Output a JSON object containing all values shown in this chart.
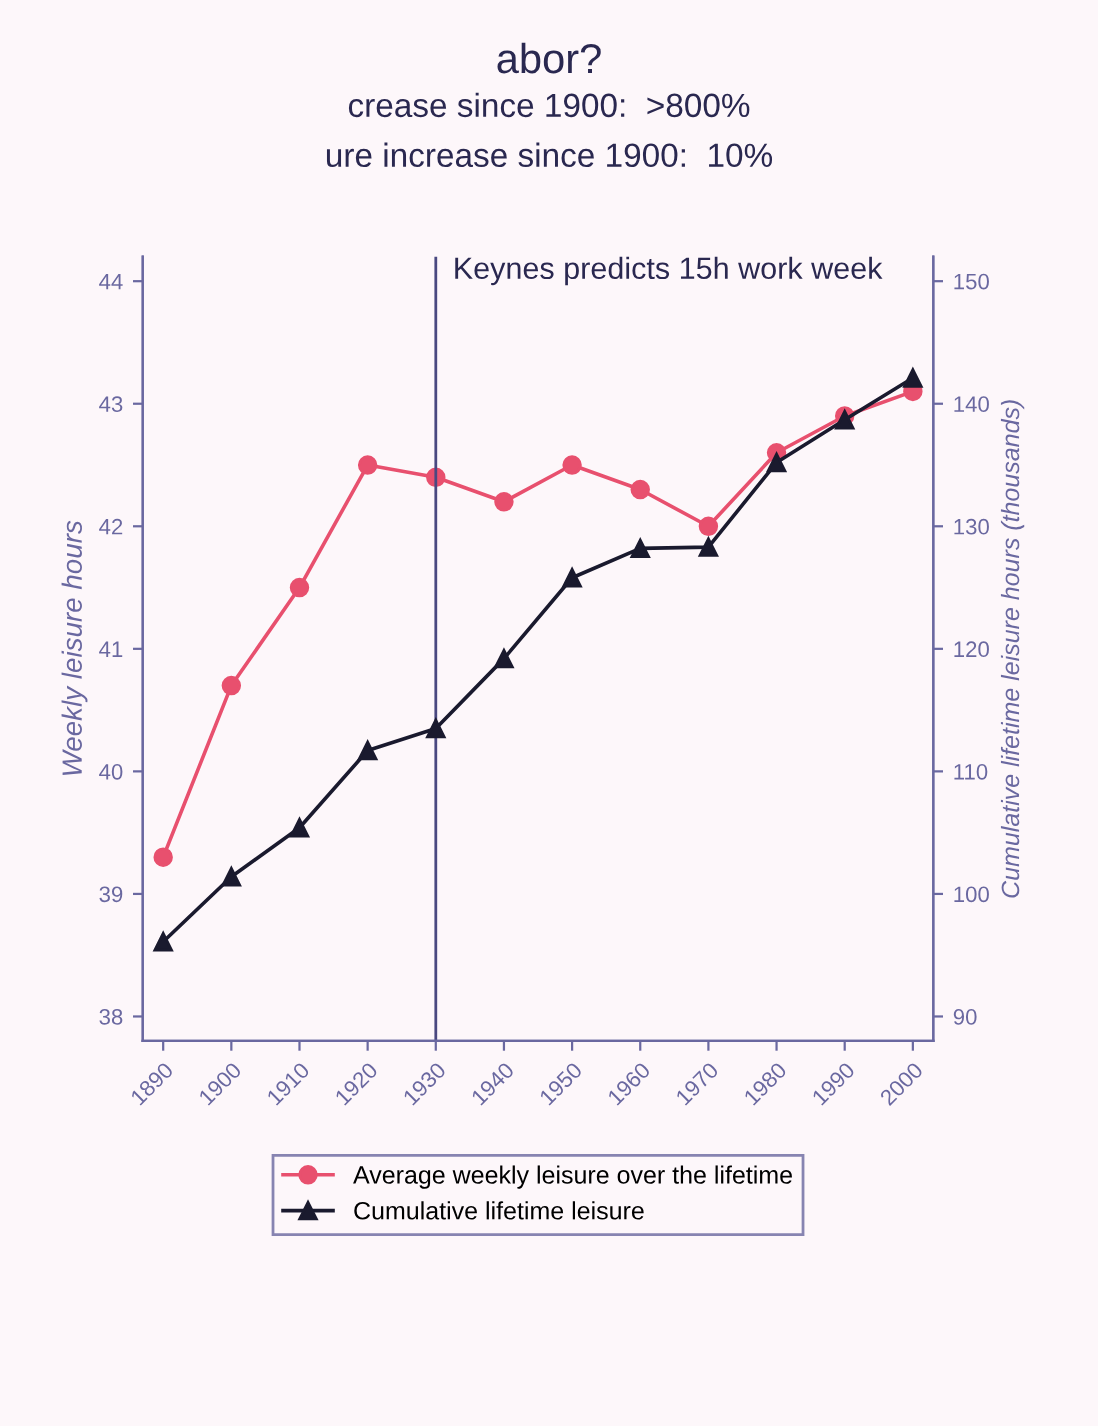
{
  "chart_data": {
    "type": "line",
    "annotations": [
      "abor?",
      "crease since 1900:  >800%",
      "ure increase since 1900:  10%"
    ],
    "ylabel": "Weekly leisure hours",
    "y2label": "Cumulative lifetime leisure hours (thousands)",
    "x": [
      1890,
      1900,
      1910,
      1920,
      1930,
      1940,
      1950,
      1960,
      1970,
      1980,
      1990,
      2000
    ],
    "series": [
      {
        "name": "Average weekly leisure over the lifetime",
        "color": "#e8506e",
        "marker": "circle",
        "values": [
          39.3,
          40.7,
          41.5,
          42.5,
          42.4,
          42.2,
          42.5,
          42.3,
          42.0,
          42.6,
          42.9,
          43.1
        ]
      },
      {
        "name": "Cumulative lifetime leisure",
        "color": "#1a1a2e",
        "marker": "triangle",
        "axis": "y2",
        "values": [
          96.1,
          101.4,
          105.4,
          111.7,
          113.5,
          119.2,
          125.8,
          128.2,
          128.3,
          135.2,
          138.7,
          142.1
        ]
      }
    ],
    "xlim": [
      1887,
      2003
    ],
    "xticks": [
      1890,
      1900,
      1910,
      1920,
      1930,
      1940,
      1950,
      1960,
      1970,
      1980,
      1990,
      2000
    ],
    "ylim": [
      37.8,
      44.2
    ],
    "yticks": [
      38,
      39,
      40,
      41,
      42,
      43,
      44
    ],
    "y2lim": [
      88,
      152
    ],
    "y2ticks": [
      90,
      100,
      110,
      120,
      130,
      140,
      150
    ],
    "ref_lines": [
      {
        "axis": "x",
        "value": 1930,
        "label": "Keynes predicts 15h work week",
        "color": "#4a4880"
      }
    ],
    "legend": "bottom",
    "grid": false,
    "line_style": "solid"
  }
}
